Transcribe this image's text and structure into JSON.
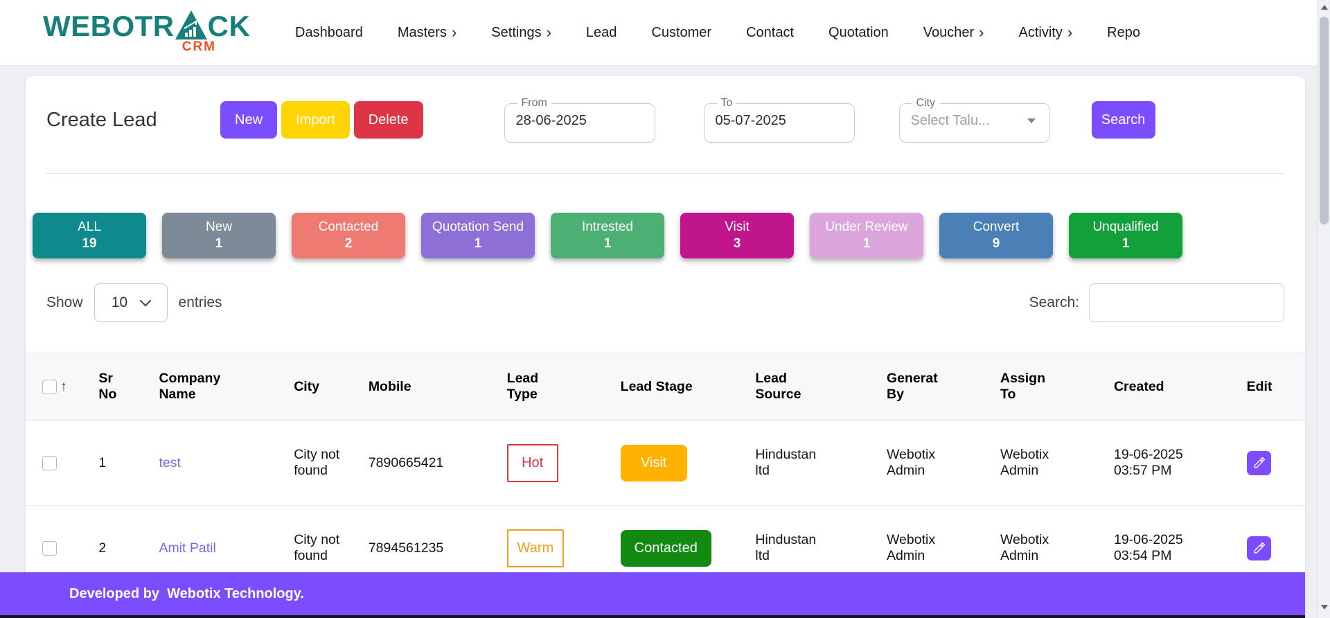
{
  "brand": {
    "name_left": "WEBOTR",
    "name_right": "CK",
    "sub": "CRM",
    "color": "#17807a",
    "sub_color": "#f04e23"
  },
  "nav": {
    "items": [
      {
        "label": "Dashboard",
        "chevron": false
      },
      {
        "label": "Masters",
        "chevron": true
      },
      {
        "label": "Settings",
        "chevron": true
      },
      {
        "label": "Lead",
        "chevron": false
      },
      {
        "label": "Customer",
        "chevron": false
      },
      {
        "label": "Contact",
        "chevron": false
      },
      {
        "label": "Quotation",
        "chevron": false
      },
      {
        "label": "Voucher",
        "chevron": true
      },
      {
        "label": "Activity",
        "chevron": true
      },
      {
        "label": "Repo",
        "chevron": false
      }
    ]
  },
  "page": {
    "title": "Create Lead"
  },
  "toolbar": {
    "new_label": "New",
    "import_label": "Import",
    "delete_label": "Delete",
    "search_label": "Search",
    "from": {
      "label": "From",
      "value": "28-06-2025"
    },
    "to": {
      "label": "To",
      "value": "05-07-2025"
    },
    "city": {
      "label": "City",
      "placeholder": "Select Talu..."
    }
  },
  "status_tabs": [
    {
      "label": "ALL",
      "count": "19",
      "color": "#0e8a8d"
    },
    {
      "label": "New",
      "count": "1",
      "color": "#7d8b99"
    },
    {
      "label": "Contacted",
      "count": "2",
      "color": "#ee7a72"
    },
    {
      "label": "Quotation Send",
      "count": "1",
      "color": "#8d6fd6"
    },
    {
      "label": "Intrested",
      "count": "1",
      "color": "#4caf73"
    },
    {
      "label": "Visit",
      "count": "3",
      "color": "#c0158c"
    },
    {
      "label": "Under Review",
      "count": "1",
      "color": "#dca6dd"
    },
    {
      "label": "Convert",
      "count": "9",
      "color": "#4a80b5"
    },
    {
      "label": "Unqualified",
      "count": "1",
      "color": "#12a03a"
    }
  ],
  "table_controls": {
    "show_label": "Show",
    "entries_value": "10",
    "entries_label": "entries",
    "search_label": "Search:",
    "search_value": ""
  },
  "table": {
    "headers": [
      [
        "Sr",
        "No"
      ],
      [
        "Company",
        "Name"
      ],
      [
        "City"
      ],
      [
        "Mobile"
      ],
      [
        "Lead",
        "Type"
      ],
      [
        "Lead Stage"
      ],
      [
        "Lead",
        "Source"
      ],
      [
        "Generat",
        "By"
      ],
      [
        "Assign",
        "To"
      ],
      [
        "Created"
      ],
      [
        "Edit"
      ]
    ],
    "rows": [
      {
        "sr": "1",
        "company": "test",
        "city": "City not found",
        "mobile": "7890665421",
        "lead_type": {
          "label": "Hot",
          "color": "#dc3545"
        },
        "lead_stage": {
          "label": "Visit",
          "color": "#ffb300"
        },
        "lead_source": "Hindustan ltd",
        "generated_by": "Webotix Admin",
        "assign_to": "Webotix Admin",
        "created": "19-06-2025 03:57 PM"
      },
      {
        "sr": "2",
        "company": "Amit Patil",
        "city": "City not found",
        "mobile": "7894561235",
        "lead_type": {
          "label": "Warm",
          "color": "#eba21c"
        },
        "lead_stage": {
          "label": "Contacted",
          "color": "#128a12"
        },
        "lead_source": "Hindustan ltd",
        "generated_by": "Webotix Admin",
        "assign_to": "Webotix Admin",
        "created": "19-06-2025 03:54 PM"
      }
    ]
  },
  "footer": {
    "text": "Developed by  Webotix Technology."
  },
  "icons": {
    "chevron_right": "›",
    "sort_up": "↑"
  },
  "colors": {
    "accent_purple": "#7c4dff",
    "import_yellow": "#ffd400",
    "delete_red": "#dc3545",
    "link_purple": "#7e68e8",
    "footer_purple": "#7c4dff"
  }
}
